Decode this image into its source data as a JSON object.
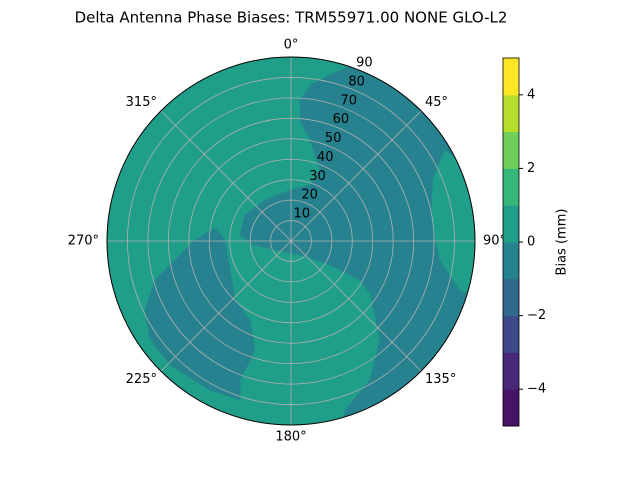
{
  "chart_data": {
    "type": "polar_contour",
    "title": "Delta Antenna Phase Biases: TRM55971.00     NONE GLO-L2",
    "theta_ticks": [
      {
        "value": 0,
        "label": "0°"
      },
      {
        "value": 45,
        "label": "45°"
      },
      {
        "value": 90,
        "label": "90°"
      },
      {
        "value": 135,
        "label": "135°"
      },
      {
        "value": 180,
        "label": "180°"
      },
      {
        "value": 225,
        "label": "225°"
      },
      {
        "value": 270,
        "label": "270°"
      },
      {
        "value": 315,
        "label": "315°"
      }
    ],
    "rlim": [
      0,
      90
    ],
    "rticks": [
      10,
      20,
      30,
      40,
      50,
      60,
      70,
      80,
      90
    ],
    "grid": true,
    "levels": [
      -5,
      -4,
      -3,
      -2,
      -1,
      0,
      1,
      2,
      3,
      4,
      5
    ],
    "level_colors": [
      "#471365",
      "#482878",
      "#3e4989",
      "#31688e",
      "#26828e",
      "#1f9e89",
      "#35b779",
      "#6ece58",
      "#b5de2b",
      "#fde725"
    ],
    "background_level": 0,
    "regions": [
      {
        "level": -1,
        "points": [
          [
            4.4,
            68.9
          ],
          [
            9.3,
            76.3
          ],
          [
            24.0,
            83.6
          ],
          [
            43.5,
            89.5
          ],
          [
            63.1,
            83.6
          ],
          [
            82.6,
            64.1
          ],
          [
            92.4,
            39.6
          ],
          [
            92.4,
            -28.9
          ],
          [
            72.9,
            -43.5
          ],
          [
            53.3,
            -38.6
          ],
          [
            41.1,
            -28.9
          ],
          [
            33.7,
            -19.1
          ],
          [
            19.1,
            -11.7
          ],
          [
            4.4,
            -6.8
          ],
          [
            -7.8,
            -4.4
          ],
          [
            -17.6,
            -2.0
          ],
          [
            -24.9,
            2.9
          ],
          [
            -22.5,
            12.7
          ],
          [
            -12.7,
            20.0
          ],
          [
            -0.5,
            24.9
          ],
          [
            9.3,
            27.4
          ],
          [
            14.2,
            34.7
          ],
          [
            9.3,
            49.4
          ],
          [
            4.4,
            59.2
          ]
        ]
      },
      {
        "level": 0,
        "points": [
          [
            75.3,
            44.5
          ],
          [
            87.5,
            34.7
          ],
          [
            92.4,
            20.0
          ],
          [
            92.4,
            -28.9
          ],
          [
            82.6,
            -24.0
          ],
          [
            72.9,
            -9.3
          ],
          [
            68.9,
            10.3
          ],
          [
            69.4,
            29.8
          ]
        ]
      },
      {
        "level": -1,
        "points": [
          [
            -37.2,
            6.4
          ],
          [
            -46.9,
            0.5
          ],
          [
            -56.7,
            -9.3
          ],
          [
            -66.5,
            -19.1
          ],
          [
            -71.4,
            -33.7
          ],
          [
            -68.9,
            -48.4
          ],
          [
            -59.2,
            -60.6
          ],
          [
            -39.6,
            -72.9
          ],
          [
            -24.9,
            -77.8
          ],
          [
            -24.9,
            -68.0
          ],
          [
            -17.6,
            -53.3
          ],
          [
            -20.0,
            -38.6
          ],
          [
            -27.4,
            -28.9
          ],
          [
            -29.8,
            -14.2
          ],
          [
            -32.3,
            0.5
          ]
        ]
      },
      {
        "level": -1,
        "points": [
          [
            38.6,
            -24.0
          ],
          [
            43.5,
            -48.4
          ],
          [
            38.6,
            -68.0
          ],
          [
            26.4,
            -82.6
          ],
          [
            24.0,
            -97.3
          ],
          [
            87.5,
            -97.3
          ],
          [
            87.5,
            -28.9
          ]
        ]
      }
    ],
    "colorbar_ticks": [
      {
        "value": -4,
        "label": "−4"
      },
      {
        "value": -2,
        "label": "−2"
      },
      0,
      2,
      4
    ],
    "colorbar_label": "Bias (mm)"
  }
}
